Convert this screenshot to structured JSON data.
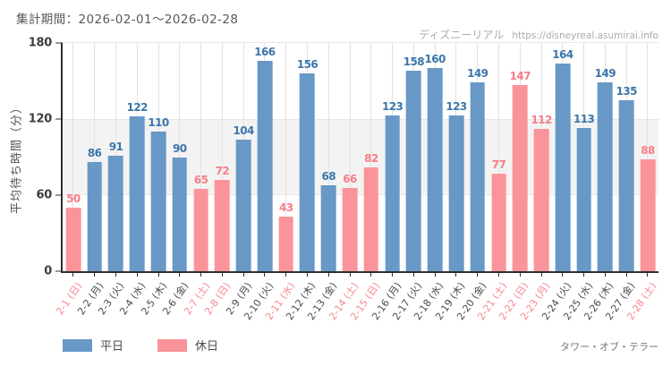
{
  "header": {
    "watermark_site": "ディズニーリアル",
    "watermark_url": "https://disneyreal.asumirai.info"
  },
  "chart_data": {
    "type": "bar",
    "title": "集計期間：2026-02-01～2026-02-28",
    "xlabel": "",
    "ylabel": "平均待ち時間（分）",
    "ylim": [
      0,
      180
    ],
    "yticks": [
      0,
      60,
      120,
      180
    ],
    "highlight_band": [
      60,
      120
    ],
    "grid": "vertical",
    "legend_position": "bottom-left",
    "categories": [
      "2-1 (日)",
      "2-2 (月)",
      "2-3 (火)",
      "2-4 (水)",
      "2-5 (木)",
      "2-6 (金)",
      "2-7 (土)",
      "2-8 (日)",
      "2-9 (月)",
      "2-10 (火)",
      "2-11 (水)",
      "2-12 (木)",
      "2-13 (金)",
      "2-14 (土)",
      "2-15 (日)",
      "2-16 (月)",
      "2-17 (火)",
      "2-18 (水)",
      "2-19 (木)",
      "2-20 (金)",
      "2-21 (土)",
      "2-22 (日)",
      "2-23 (月)",
      "2-24 (火)",
      "2-25 (水)",
      "2-26 (木)",
      "2-27 (金)",
      "2-28 (土)"
    ],
    "values": [
      50,
      86,
      91,
      122,
      110,
      90,
      65,
      72,
      104,
      166,
      43,
      156,
      68,
      66,
      82,
      123,
      158,
      160,
      123,
      149,
      77,
      147,
      112,
      164,
      113,
      149,
      135,
      88
    ],
    "day_types": [
      "holiday",
      "weekday",
      "weekday",
      "weekday",
      "weekday",
      "weekday",
      "holiday",
      "holiday",
      "weekday",
      "weekday",
      "holiday",
      "weekday",
      "weekday",
      "holiday",
      "holiday",
      "weekday",
      "weekday",
      "weekday",
      "weekday",
      "weekday",
      "holiday",
      "holiday",
      "holiday",
      "weekday",
      "weekday",
      "weekday",
      "weekday",
      "holiday"
    ],
    "legend": [
      {
        "label": "平日",
        "type": "weekday"
      },
      {
        "label": "休日",
        "type": "holiday"
      }
    ],
    "colors": {
      "weekday_bar": "#6898c6",
      "holiday_bar": "#fb949a",
      "weekday_value_label": "#3b76ab",
      "holiday_value_label": "#f87e86",
      "weekday_axis_label": "#4a4a4a",
      "holiday_axis_label": "#f8868d"
    }
  },
  "footer": {
    "attraction_label": "タワー・オブ・テラー"
  }
}
